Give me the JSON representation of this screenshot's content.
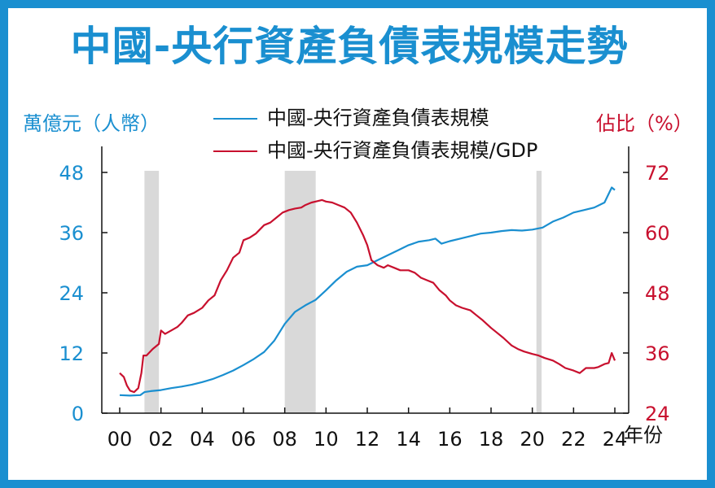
{
  "title": "中國-央行資產負債表規模走勢",
  "colors": {
    "frame": "#1a8fd0",
    "series_assets": "#1a8fd0",
    "series_ratio": "#c8102e",
    "recession_band": "#d9d9d9"
  },
  "chart_data": {
    "type": "line",
    "title": "中國-央行資產負債表規模走勢",
    "ylabel_left": "萬億元（人幣）",
    "ylabel_right": "佔比（%）",
    "xlabel": "年份",
    "xlim": [
      2000,
      2024
    ],
    "ylim_left": [
      0,
      48
    ],
    "ylim_right": [
      24,
      72
    ],
    "yticks_left": [
      0,
      12,
      24,
      36,
      48
    ],
    "yticks_right": [
      24,
      36,
      48,
      60,
      72
    ],
    "xticks": [
      "00",
      "02",
      "04",
      "06",
      "08",
      "10",
      "12",
      "14",
      "16",
      "18",
      "20",
      "22",
      "24"
    ],
    "legend_position": "top-center",
    "grid": false,
    "shaded_periods": [
      [
        2001.2,
        2001.9
      ],
      [
        2008.0,
        2009.5
      ],
      [
        2020.2,
        2020.45
      ]
    ],
    "series": [
      {
        "name": "中國-央行資產負債表規模",
        "axis": "left",
        "x": [
          2000.0,
          2000.5,
          2001.0,
          2001.2,
          2001.5,
          2002.0,
          2002.5,
          2003.0,
          2003.5,
          2004.0,
          2004.5,
          2005.0,
          2005.5,
          2006.0,
          2006.5,
          2007.0,
          2007.5,
          2008.0,
          2008.5,
          2009.0,
          2009.5,
          2010.0,
          2010.5,
          2011.0,
          2011.5,
          2012.0,
          2012.5,
          2013.0,
          2013.5,
          2014.0,
          2014.5,
          2015.0,
          2015.3,
          2015.6,
          2016.0,
          2016.5,
          2017.0,
          2017.5,
          2018.0,
          2018.5,
          2019.0,
          2019.5,
          2020.0,
          2020.5,
          2021.0,
          2021.5,
          2022.0,
          2022.5,
          2023.0,
          2023.5,
          2023.85,
          2024.0
        ],
        "values": [
          3.6,
          3.5,
          3.6,
          4.2,
          4.4,
          4.6,
          5.0,
          5.3,
          5.7,
          6.2,
          6.8,
          7.6,
          8.5,
          9.6,
          10.8,
          12.2,
          14.5,
          17.8,
          20.2,
          21.5,
          22.6,
          24.5,
          26.5,
          28.2,
          29.2,
          29.5,
          30.5,
          31.5,
          32.5,
          33.5,
          34.2,
          34.5,
          34.8,
          33.8,
          34.3,
          34.8,
          35.3,
          35.8,
          36.0,
          36.3,
          36.5,
          36.4,
          36.6,
          37.0,
          38.2,
          39.0,
          40.0,
          40.5,
          41.0,
          42.0,
          45.0,
          44.5
        ]
      },
      {
        "name": "中國-央行資產負債表規模/GDP",
        "axis": "right",
        "x": [
          2000.0,
          2000.2,
          2000.35,
          2000.5,
          2000.7,
          2000.9,
          2001.05,
          2001.15,
          2001.3,
          2001.6,
          2001.9,
          2002.0,
          2002.2,
          2002.5,
          2002.8,
          2003.0,
          2003.3,
          2003.6,
          2004.0,
          2004.3,
          2004.6,
          2004.9,
          2005.2,
          2005.5,
          2005.8,
          2006.0,
          2006.3,
          2006.6,
          2007.0,
          2007.3,
          2007.6,
          2007.9,
          2008.2,
          2008.5,
          2008.8,
          2009.0,
          2009.3,
          2009.6,
          2009.8,
          2010.0,
          2010.3,
          2010.6,
          2010.9,
          2011.2,
          2011.5,
          2011.8,
          2012.0,
          2012.2,
          2012.5,
          2012.8,
          2013.0,
          2013.3,
          2013.6,
          2014.0,
          2014.3,
          2014.6,
          2014.9,
          2015.2,
          2015.5,
          2015.8,
          2016.0,
          2016.3,
          2016.6,
          2017.0,
          2017.3,
          2017.6,
          2018.0,
          2018.3,
          2018.6,
          2019.0,
          2019.3,
          2019.6,
          2020.0,
          2020.3,
          2020.6,
          2021.0,
          2021.3,
          2021.6,
          2022.0,
          2022.3,
          2022.6,
          2023.0,
          2023.2,
          2023.5,
          2023.7,
          2023.85,
          2024.0
        ],
        "values": [
          32.0,
          31.2,
          29.5,
          28.5,
          28.2,
          29.0,
          32.0,
          35.5,
          35.5,
          36.8,
          37.8,
          40.5,
          39.8,
          40.5,
          41.2,
          42.0,
          43.5,
          44.0,
          45.0,
          46.5,
          47.5,
          50.5,
          52.5,
          55.0,
          56.0,
          58.5,
          59.0,
          59.8,
          61.5,
          62.0,
          63.0,
          64.0,
          64.5,
          64.8,
          65.0,
          65.5,
          66.0,
          66.3,
          66.5,
          66.2,
          66.0,
          65.5,
          65.0,
          64.0,
          62.0,
          59.5,
          57.5,
          54.5,
          53.5,
          53.0,
          53.5,
          53.0,
          52.5,
          52.5,
          52.0,
          51.0,
          50.5,
          50.0,
          48.5,
          47.5,
          46.5,
          45.5,
          45.0,
          44.5,
          43.5,
          42.5,
          41.0,
          40.0,
          39.0,
          37.5,
          36.8,
          36.3,
          35.8,
          35.5,
          35.0,
          34.5,
          33.8,
          33.0,
          32.5,
          32.0,
          33.0,
          33.0,
          33.2,
          33.8,
          34.0,
          36.0,
          34.5
        ]
      }
    ]
  }
}
